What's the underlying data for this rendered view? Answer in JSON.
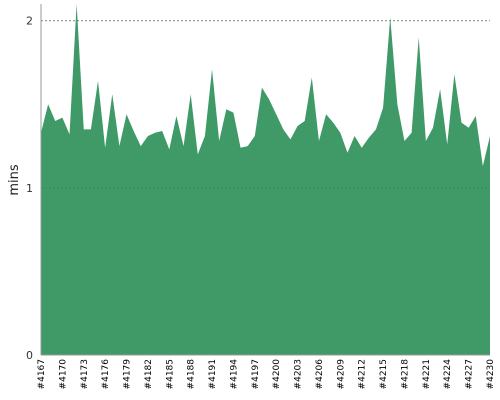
{
  "chart_data": {
    "type": "area",
    "ylabel": "mins",
    "ylim": [
      0,
      2.1
    ],
    "yticks": [
      {
        "value": 0,
        "label": "0"
      },
      {
        "value": 1,
        "label": "1"
      },
      {
        "value": 2,
        "label": "2"
      }
    ],
    "grid": true,
    "fill_color": "#3f9a68",
    "gridline_color": "#888888",
    "x_tick_labels": [
      "#4167",
      "#4170",
      "#4173",
      "#4176",
      "#4179",
      "#4182",
      "#4185",
      "#4188",
      "#4191",
      "#4194",
      "#4197",
      "#4200",
      "#4203",
      "#4206",
      "#4209",
      "#4212",
      "#4215",
      "#4218",
      "#4221",
      "#4224",
      "#4227",
      "#4230"
    ],
    "series": [
      {
        "x": [
          4167,
          4168,
          4169,
          4170,
          4171,
          4172,
          4173,
          4174,
          4175,
          4176,
          4177,
          4178,
          4179,
          4180,
          4181,
          4182,
          4183,
          4184,
          4185,
          4186,
          4187,
          4188,
          4189,
          4190,
          4191,
          4192,
          4193,
          4194,
          4195,
          4196,
          4197,
          4198,
          4199,
          4200,
          4201,
          4202,
          4203,
          4204,
          4205,
          4206,
          4207,
          4208,
          4209,
          4210,
          4211,
          4212,
          4213,
          4214,
          4215,
          4216,
          4217,
          4218,
          4219,
          4220,
          4221,
          4222,
          4223,
          4224,
          4225,
          4226,
          4227,
          4228,
          4229,
          4230
        ],
        "values": [
          1.33,
          1.5,
          1.4,
          1.42,
          1.32,
          2.1,
          1.35,
          1.35,
          1.64,
          1.24,
          1.56,
          1.25,
          1.44,
          1.34,
          1.25,
          1.31,
          1.33,
          1.34,
          1.23,
          1.43,
          1.25,
          1.56,
          1.2,
          1.31,
          1.71,
          1.28,
          1.47,
          1.45,
          1.24,
          1.25,
          1.31,
          1.6,
          1.53,
          1.44,
          1.35,
          1.29,
          1.37,
          1.4,
          1.66,
          1.28,
          1.44,
          1.39,
          1.33,
          1.21,
          1.31,
          1.24,
          1.3,
          1.35,
          1.48,
          2.02,
          1.5,
          1.28,
          1.33,
          1.9,
          1.28,
          1.36,
          1.59,
          1.26,
          1.68,
          1.39,
          1.36,
          1.43,
          1.13,
          1.31
        ]
      }
    ]
  }
}
